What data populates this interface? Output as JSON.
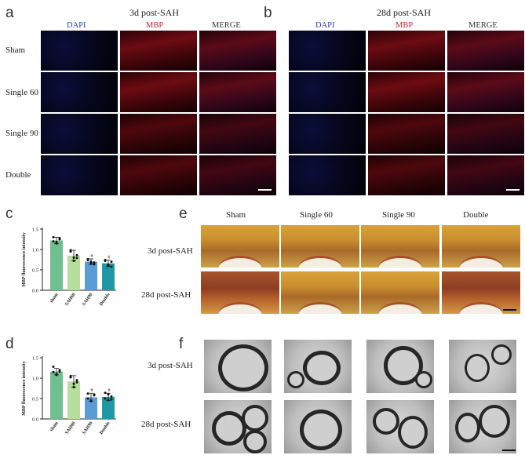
{
  "panels": {
    "a": {
      "label": "a",
      "title": "3d post-SAH"
    },
    "b": {
      "label": "b",
      "title": "28d post-SAH"
    },
    "c": {
      "label": "c"
    },
    "d": {
      "label": "d"
    },
    "e": {
      "label": "e"
    },
    "f": {
      "label": "f"
    }
  },
  "channels": [
    "DAPI",
    "MBP",
    "MERGE"
  ],
  "channel_colors": {
    "DAPI": "#2f3fbf",
    "MBP": "#c0282e",
    "MERGE": "#333333"
  },
  "ab_rows": [
    "Sham",
    "Single 60",
    "Single 90",
    "Double"
  ],
  "e_cols": [
    "Sham",
    "Single 60",
    "Single 90",
    "Double"
  ],
  "ef_rows": [
    "3d post-SAH",
    "28d post-SAH"
  ],
  "bar_colors": [
    "#6fc08e",
    "#b5dd9c",
    "#5b9bd6",
    "#1f97a4"
  ],
  "chart_data": [
    {
      "type": "bar",
      "panel": "c",
      "categories": [
        "sham",
        "SAH60",
        "SAH90",
        "Double"
      ],
      "values": [
        1.22,
        0.85,
        0.7,
        0.66
      ],
      "errors": [
        0.08,
        0.13,
        0.07,
        0.08
      ],
      "ylabel": "MBP fluorescence intensity",
      "ylim": [
        0,
        1.5
      ],
      "yticks": [
        "0.0",
        "0.5",
        "1.0",
        "1.5"
      ],
      "significance": [
        "",
        "",
        "#",
        "#"
      ],
      "points": [
        [
          1.3,
          1.15,
          1.28,
          1.2,
          1.18,
          1.25
        ],
        [
          0.95,
          0.72,
          0.86,
          0.98,
          0.8,
          0.79
        ],
        [
          0.76,
          0.66,
          0.64,
          0.74,
          0.7,
          0.68
        ],
        [
          0.74,
          0.6,
          0.58,
          0.72,
          0.63,
          0.7
        ]
      ]
    },
    {
      "type": "bar",
      "panel": "d",
      "categories": [
        "sham",
        "SAH60",
        "SAH90",
        "Double"
      ],
      "values": [
        1.16,
        0.92,
        0.53,
        0.54
      ],
      "errors": [
        0.08,
        0.14,
        0.1,
        0.09
      ],
      "ylabel": "MBP fluorescence intensity",
      "ylim": [
        0,
        1.5
      ],
      "yticks": [
        "0.0",
        "0.5",
        "1.0",
        "1.5"
      ],
      "significance": [
        "",
        "",
        "#",
        "#"
      ],
      "points": [
        [
          1.28,
          1.1,
          1.2,
          1.15,
          1.08,
          1.16
        ],
        [
          1.05,
          0.78,
          0.9,
          1.02,
          0.86,
          0.95
        ],
        [
          0.62,
          0.45,
          0.58,
          0.5,
          0.44,
          0.6
        ],
        [
          0.64,
          0.46,
          0.55,
          0.5,
          0.6,
          0.48
        ]
      ]
    }
  ]
}
